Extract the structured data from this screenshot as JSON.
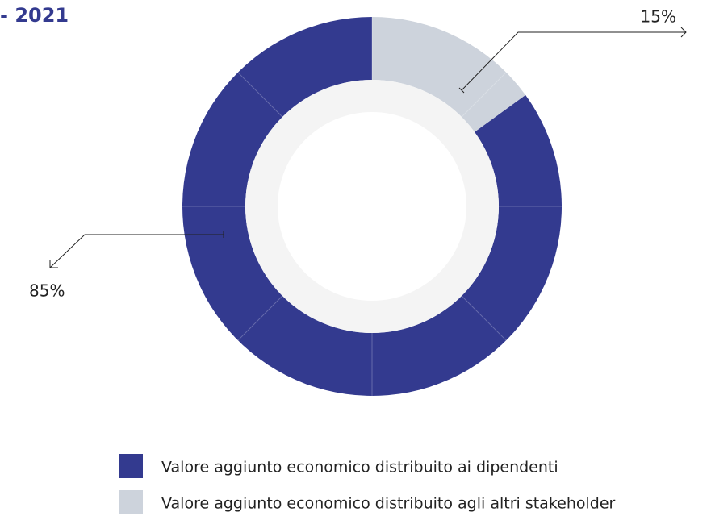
{
  "chart_data": {
    "type": "pie",
    "title": "- 2021",
    "categories": [
      "Valore aggiunto economico distribuito ai dipendenti",
      "Valore aggiunto economico distribuito agli altri stakeholder"
    ],
    "values": [
      85,
      15
    ],
    "value_labels": [
      "85%",
      "15%"
    ],
    "colors": [
      "#333a8f",
      "#cdd3dc"
    ]
  }
}
